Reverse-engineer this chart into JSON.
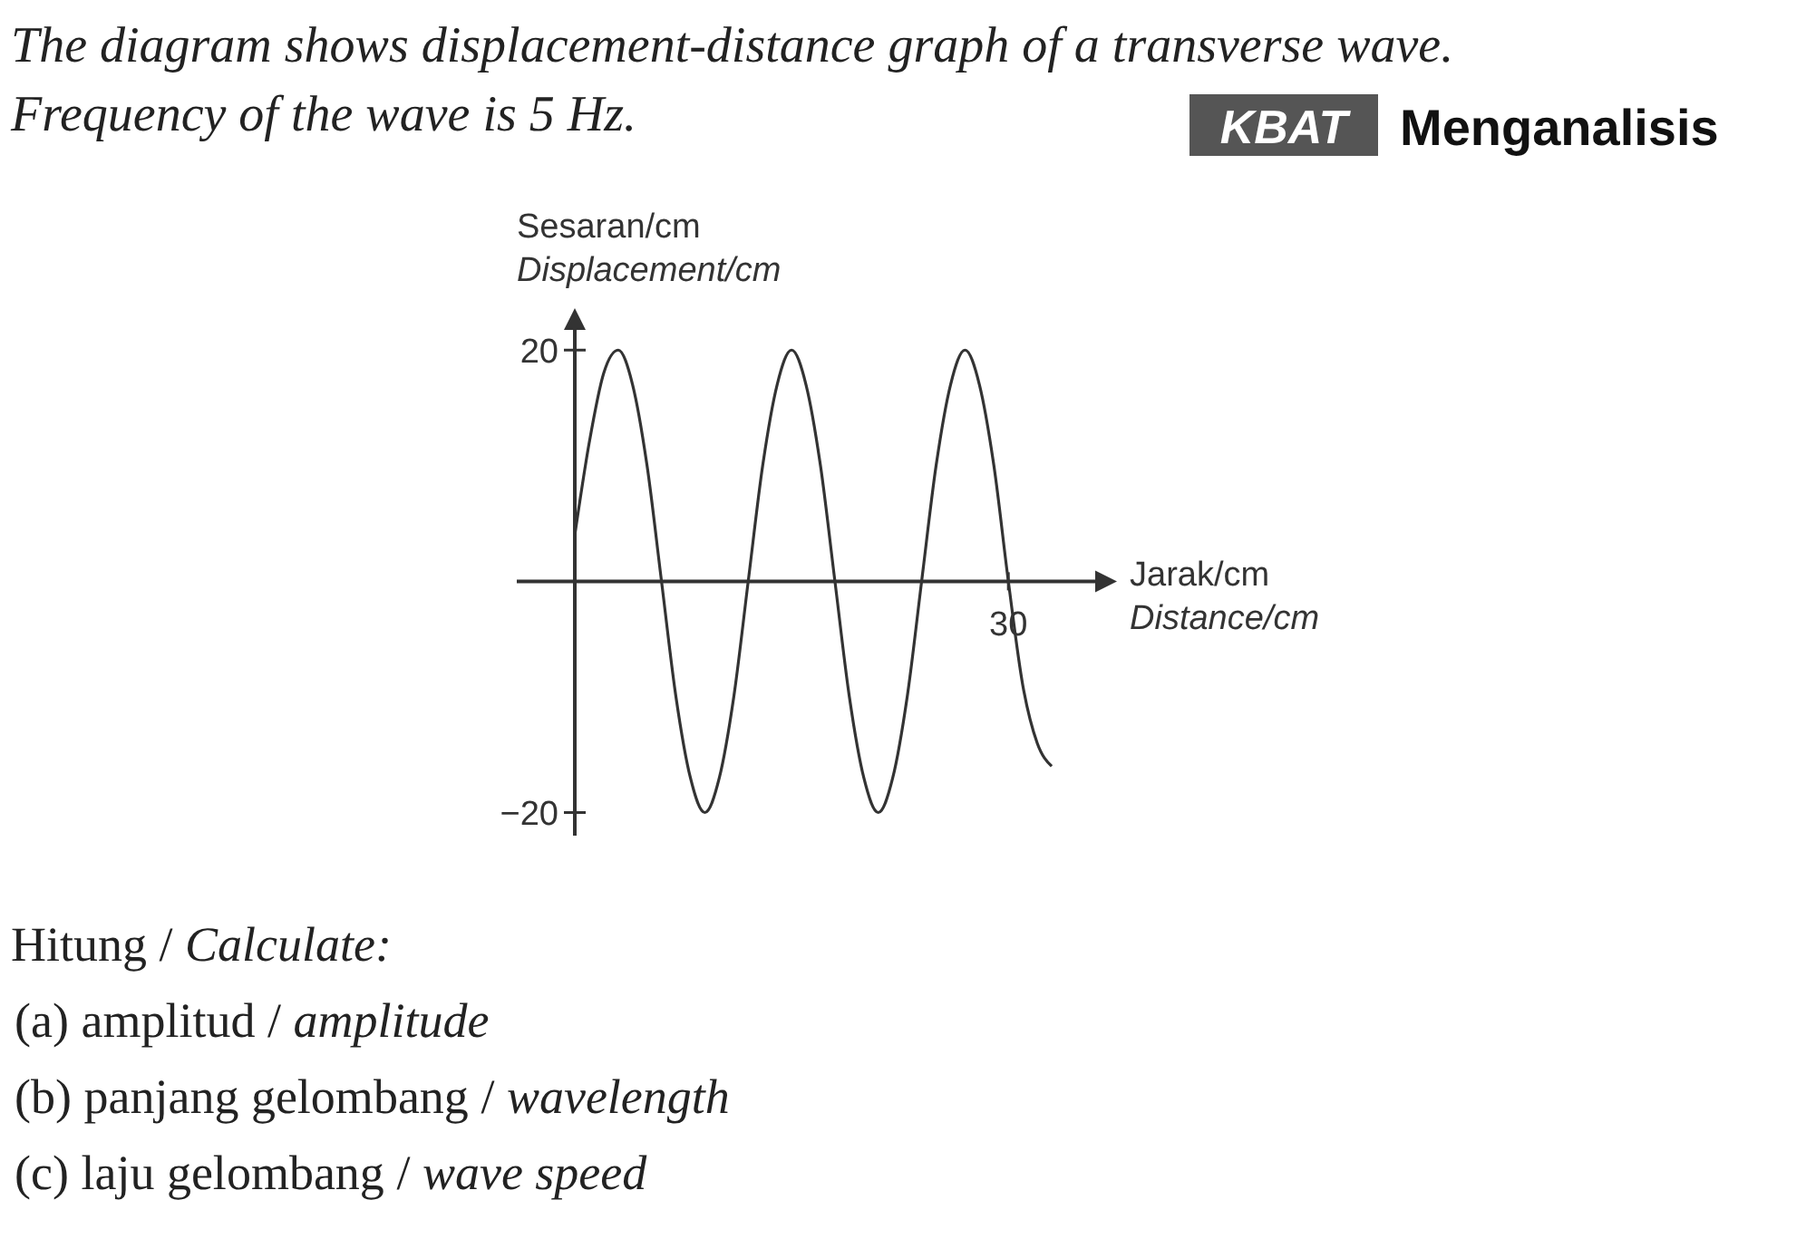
{
  "chart_data": {
    "type": "line",
    "title": "The diagram shows displacement-distance graph of a transverse wave. Frequency of the wave is 5 Hz.",
    "xlabel": "Jarak/cm\nDistance/cm",
    "ylabel": "Sesaran/cm\nDisplacement/cm",
    "annotations": [
      "KBAT",
      "Menganalisis",
      "Hitung / Calculate:",
      "(a) amplitud / amplitude",
      "(b) panjang gelombang / wavelength",
      "(c) laju gelombang / wave speed"
    ],
    "categories": [
      null,
      null,
      null,
      null,
      null,
      null,
      null,
      null,
      null,
      null,
      null,
      null,
      null,
      null,
      null,
      null,
      null,
      null,
      null,
      null,
      null,
      null,
      null,
      null,
      null,
      null,
      null,
      null,
      null,
      null,
      "30",
      null,
      null,
      null
    ],
    "ylim": [
      -22,
      23
    ],
    "yticks": [
      {
        "value": 20,
        "label": "20"
      },
      {
        "value": -20,
        "label": "−20"
      }
    ],
    "series": [
      {
        "color": "#333333",
        "values": [
          4,
          12,
          18,
          20,
          17,
          10,
          0,
          -10,
          -17,
          -20,
          -17,
          -10,
          0,
          10,
          17,
          20,
          17,
          10,
          0,
          -10,
          -17,
          -20,
          -17,
          -10,
          0,
          10,
          17,
          20,
          17,
          10,
          0,
          -9,
          -14,
          -16
        ]
      }
    ]
  }
}
